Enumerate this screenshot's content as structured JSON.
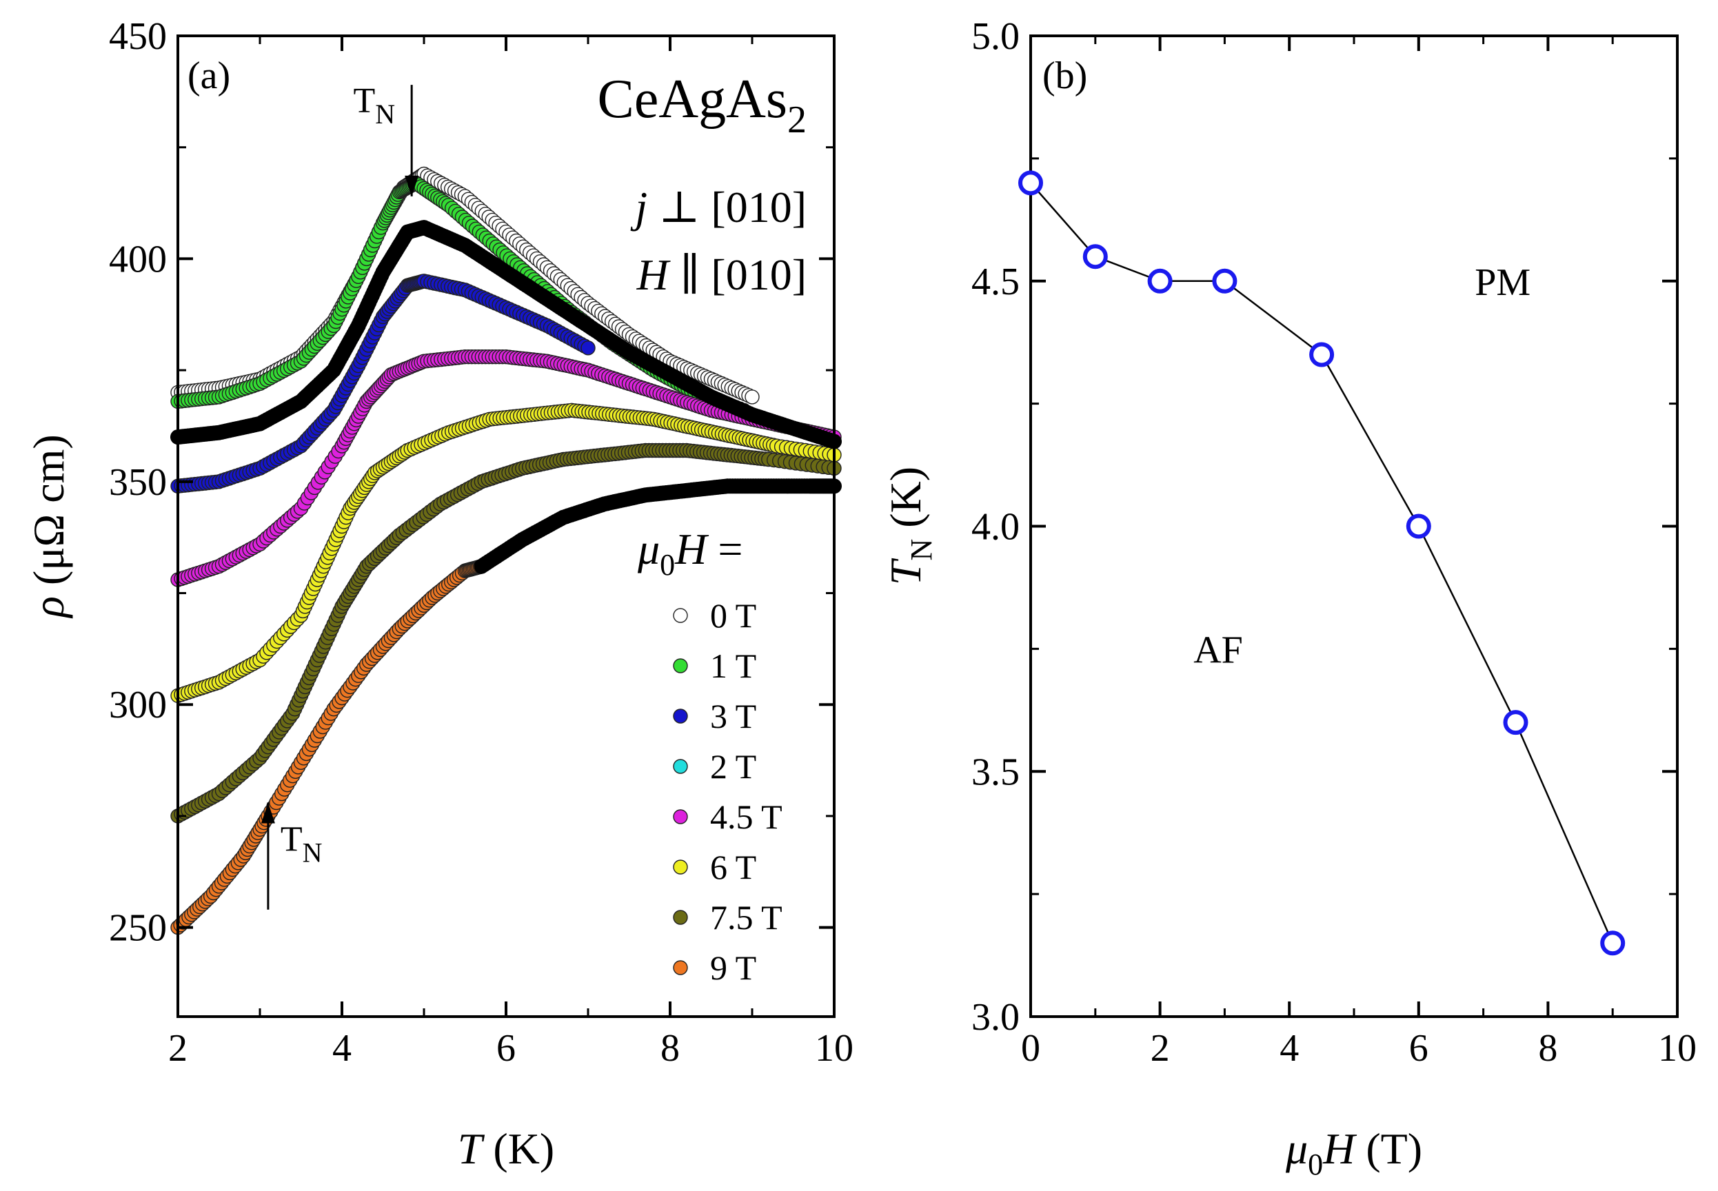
{
  "chart_data": [
    {
      "type": "scatter",
      "panel_label": "(a)",
      "title": {
        "main": "CeAgAs",
        "sub": "2"
      },
      "direction_j": {
        "symbol": "j",
        "text": " ⊥ [010]"
      },
      "direction_h": {
        "symbol": "H",
        "text": " ∥ [010]"
      },
      "xlabel": {
        "symbol": "T",
        "text": " (K)"
      },
      "ylabel": {
        "symbol": "ρ",
        "text": " (μΩ cm)"
      },
      "xlim": [
        2,
        10
      ],
      "ylim": [
        230,
        450
      ],
      "xticks": [
        {
          "value": 2,
          "label": "2"
        },
        {
          "value": 4,
          "label": "4"
        },
        {
          "value": 6,
          "label": "6"
        },
        {
          "value": 8,
          "label": "8"
        },
        {
          "value": 10,
          "label": "10"
        }
      ],
      "yticks": [
        {
          "value": 250,
          "label": "250"
        },
        {
          "value": 300,
          "label": "300"
        },
        {
          "value": 350,
          "label": "350"
        },
        {
          "value": 400,
          "label": "400"
        },
        {
          "value": 450,
          "label": "450"
        }
      ],
      "legend_title": {
        "symbol": "μ",
        "sub": "0",
        "symbol2": "H",
        "text": " ="
      },
      "annotations": [
        {
          "text": "T",
          "sub": "N",
          "arrow": "down",
          "x": 4.85,
          "y_tip": 414,
          "y_tail": 439
        },
        {
          "text": "T",
          "sub": "N",
          "arrow": "up",
          "x": 3.1,
          "y_tip": 278,
          "y_tail": 254
        }
      ],
      "series": [
        {
          "name": "0 T",
          "color": "#ffffff",
          "x": [
            2.0,
            2.5,
            3.0,
            3.5,
            3.9,
            4.2,
            4.5,
            4.75,
            5.0,
            5.5,
            6.0,
            6.5,
            7.0,
            7.5,
            8.0,
            8.5,
            9.0
          ],
          "y": [
            370,
            371,
            373,
            378,
            386,
            396,
            408,
            416,
            419,
            414,
            406,
            398,
            390,
            383,
            377,
            373,
            369
          ]
        },
        {
          "name": "1 T",
          "color": "#33dd33",
          "x": [
            2.0,
            2.5,
            3.0,
            3.5,
            3.9,
            4.2,
            4.5,
            4.7,
            4.9,
            5.3,
            5.8,
            6.3,
            6.8,
            7.3,
            7.8,
            8.3,
            8.9
          ],
          "y": [
            368,
            369,
            372,
            377,
            385,
            396,
            408,
            415,
            417,
            412,
            404,
            396,
            388,
            381,
            375,
            370,
            366
          ]
        },
        {
          "name": "2 T",
          "color": "#22dddd",
          "x": [
            2.0,
            2.5,
            3.0,
            3.5,
            3.9,
            4.2,
            4.5,
            4.8,
            5.0,
            5.5,
            6.0,
            6.5,
            7.0,
            7.5,
            8.0,
            8.5,
            9.0,
            9.5,
            10.0
          ],
          "y": [
            360,
            361,
            363,
            368,
            375,
            385,
            397,
            406,
            407,
            403,
            397,
            391,
            385,
            379,
            374,
            369,
            365,
            362,
            359
          ]
        },
        {
          "name": "3 T",
          "color": "#1515cc",
          "x": [
            2.0,
            2.5,
            3.0,
            3.5,
            3.9,
            4.2,
            4.5,
            4.8,
            5.0,
            5.5,
            6.0,
            6.5,
            7.0
          ],
          "y": [
            349,
            350,
            353,
            358,
            366,
            376,
            387,
            394,
            395,
            393,
            389,
            385,
            380
          ]
        },
        {
          "name": "4.5 T",
          "color": "#dd22dd",
          "x": [
            2.0,
            2.5,
            3.0,
            3.5,
            4.0,
            4.3,
            4.6,
            5.0,
            5.5,
            6.0,
            6.5,
            7.0,
            7.5,
            8.0,
            8.5,
            9.0,
            9.5,
            10.0
          ],
          "y": [
            328,
            331,
            336,
            344,
            358,
            368,
            374,
            377,
            378,
            378,
            377,
            375,
            372,
            369,
            366,
            364,
            362,
            360
          ]
        },
        {
          "name": "6 T",
          "color": "#eeee22",
          "x": [
            2.0,
            2.5,
            3.0,
            3.5,
            3.8,
            4.1,
            4.4,
            4.8,
            5.3,
            5.8,
            6.3,
            6.8,
            7.3,
            7.8,
            8.3,
            8.8,
            9.3,
            10.0
          ],
          "y": [
            302,
            305,
            310,
            320,
            332,
            344,
            352,
            357,
            361,
            364,
            365,
            366,
            365,
            364,
            362,
            360,
            358,
            356
          ]
        },
        {
          "name": "7.5 T",
          "color": "#6b6b15",
          "x": [
            2.0,
            2.5,
            3.0,
            3.4,
            3.7,
            4.0,
            4.3,
            4.7,
            5.2,
            5.7,
            6.2,
            6.7,
            7.2,
            7.7,
            8.2,
            8.7,
            9.2,
            10.0
          ],
          "y": [
            275,
            280,
            288,
            298,
            310,
            322,
            331,
            338,
            345,
            350,
            353,
            355,
            356,
            357,
            357,
            356,
            355,
            353
          ]
        },
        {
          "name": "9 T",
          "color": "#ee7722",
          "x": [
            2.0,
            2.4,
            2.8,
            3.1,
            3.5,
            3.9,
            4.3,
            4.7,
            5.1,
            5.5,
            5.7
          ],
          "y": [
            250,
            257,
            266,
            275,
            287,
            299,
            309,
            317,
            324,
            330,
            331
          ]
        }
      ],
      "black_curves": [
        {
          "x": [
            2.0,
            2.5,
            3.0,
            3.5,
            3.9,
            4.2,
            4.5,
            4.8,
            5.0,
            5.5,
            6.0,
            6.5,
            7.0,
            7.5,
            8.0,
            8.5,
            9.0,
            9.5,
            10.0
          ],
          "y": [
            360,
            361,
            363,
            368,
            375,
            385,
            397,
            406,
            407,
            403,
            397,
            391,
            385,
            379,
            374,
            369,
            365,
            362,
            359
          ]
        },
        {
          "x": [
            5.7,
            6.2,
            6.7,
            7.2,
            7.7,
            8.2,
            8.7,
            9.2,
            9.7,
            10.0
          ],
          "y": [
            331,
            337,
            342,
            345,
            347,
            348,
            349,
            349,
            349,
            349
          ]
        }
      ]
    },
    {
      "type": "line",
      "panel_label": "(b)",
      "xlabel": {
        "symbol": "μ",
        "sub": "0",
        "symbol2": "H",
        "text": " (T)"
      },
      "ylabel": {
        "symbol": "T",
        "sub": "N",
        "text": " (K)"
      },
      "xlim": [
        0,
        10
      ],
      "ylim": [
        3.0,
        5.0
      ],
      "xticks": [
        {
          "value": 0,
          "label": "0"
        },
        {
          "value": 2,
          "label": "2"
        },
        {
          "value": 4,
          "label": "4"
        },
        {
          "value": 6,
          "label": "6"
        },
        {
          "value": 8,
          "label": "8"
        },
        {
          "value": 10,
          "label": "10"
        }
      ],
      "yticks": [
        {
          "value": 3.0,
          "label": "3.0"
        },
        {
          "value": 3.5,
          "label": "3.5"
        },
        {
          "value": 4.0,
          "label": "4.0"
        },
        {
          "value": 4.5,
          "label": "4.5"
        },
        {
          "value": 5.0,
          "label": "5.0"
        }
      ],
      "regions": [
        {
          "label": "PM",
          "x": 7.3,
          "y": 4.5
        },
        {
          "label": "AF",
          "x": 2.9,
          "y": 3.75
        }
      ],
      "marker_color": "#1a1aee",
      "x": [
        0,
        1,
        2,
        3,
        4.5,
        6,
        7.5,
        9
      ],
      "y": [
        4.7,
        4.55,
        4.5,
        4.5,
        4.35,
        4.0,
        3.6,
        3.15
      ]
    }
  ]
}
